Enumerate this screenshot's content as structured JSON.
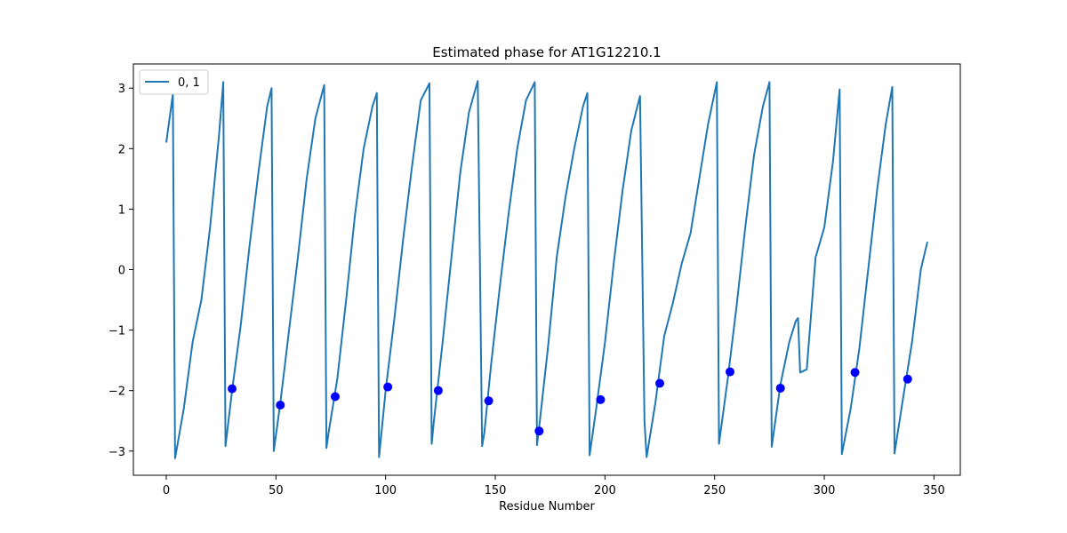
{
  "chart_data": {
    "type": "line",
    "title": "Estimated phase for AT1G12210.1",
    "xlabel": "Residue Number",
    "ylabel": "",
    "xlim": [
      -15,
      362
    ],
    "ylim": [
      -3.4,
      3.4
    ],
    "xticks": [
      0,
      50,
      100,
      150,
      200,
      250,
      300,
      350
    ],
    "yticks": [
      -3,
      -2,
      -1,
      0,
      1,
      2,
      3
    ],
    "grid": false,
    "legend": "top-left",
    "series": [
      {
        "name": "0, 1",
        "color": "#1f77b4",
        "x": [
          0,
          3,
          4,
          8,
          12,
          16,
          20,
          24,
          26,
          27,
          30,
          34,
          38,
          42,
          46,
          48,
          49,
          52,
          56,
          60,
          64,
          68,
          72,
          73,
          74,
          78,
          82,
          86,
          90,
          94,
          96,
          97,
          100,
          104,
          108,
          112,
          116,
          120,
          121,
          122,
          126,
          130,
          134,
          138,
          142,
          144,
          145,
          148,
          152,
          156,
          160,
          164,
          168,
          169,
          170,
          174,
          178,
          182,
          186,
          190,
          192,
          193,
          196,
          200,
          204,
          208,
          212,
          216,
          218,
          219,
          223,
          227,
          231,
          235,
          239,
          243,
          247,
          251,
          252,
          256,
          260,
          264,
          268,
          272,
          275,
          276,
          280,
          284,
          287,
          288,
          289,
          292,
          296,
          300,
          304,
          307,
          308,
          312,
          316,
          320,
          324,
          328,
          331,
          332,
          336,
          340,
          344,
          347
        ],
        "y": [
          2.1,
          2.9,
          -3.12,
          -2.3,
          -1.2,
          -0.5,
          0.7,
          2.2,
          3.1,
          -2.92,
          -2.0,
          -0.9,
          0.4,
          1.6,
          2.7,
          3.0,
          -3.0,
          -2.2,
          -1.0,
          0.2,
          1.5,
          2.5,
          3.05,
          -2.95,
          -2.7,
          -1.8,
          -0.5,
          0.9,
          2.0,
          2.7,
          2.92,
          -3.1,
          -2.0,
          -0.8,
          0.5,
          1.7,
          2.8,
          3.08,
          -2.88,
          -2.5,
          -1.2,
          0.2,
          1.6,
          2.6,
          3.12,
          -2.92,
          -2.7,
          -1.6,
          -0.3,
          0.9,
          2.0,
          2.8,
          3.1,
          -2.9,
          -2.6,
          -1.3,
          0.2,
          1.2,
          2.0,
          2.7,
          2.92,
          -3.07,
          -2.3,
          -1.2,
          0.1,
          1.3,
          2.3,
          2.87,
          -2.5,
          -3.1,
          -2.2,
          -1.1,
          -0.55,
          0.1,
          0.6,
          1.5,
          2.4,
          3.1,
          -2.88,
          -1.8,
          -0.6,
          0.7,
          1.9,
          2.7,
          3.1,
          -2.93,
          -1.9,
          -1.2,
          -0.85,
          -0.8,
          -1.7,
          -1.65,
          0.2,
          0.7,
          1.8,
          2.98,
          -3.05,
          -2.3,
          -1.3,
          0.0,
          1.3,
          2.4,
          3.02,
          -3.04,
          -2.1,
          -1.2,
          0.0,
          0.46
        ]
      }
    ],
    "markers": {
      "color": "#0000ff",
      "x": [
        30,
        52,
        77,
        101,
        124,
        147,
        170,
        198,
        225,
        257,
        280,
        314,
        338
      ],
      "y": [
        -1.97,
        -2.24,
        -2.1,
        -1.94,
        -2.0,
        -2.17,
        -2.67,
        -2.15,
        -1.88,
        -1.69,
        -1.96,
        -1.7,
        -1.81
      ]
    }
  }
}
